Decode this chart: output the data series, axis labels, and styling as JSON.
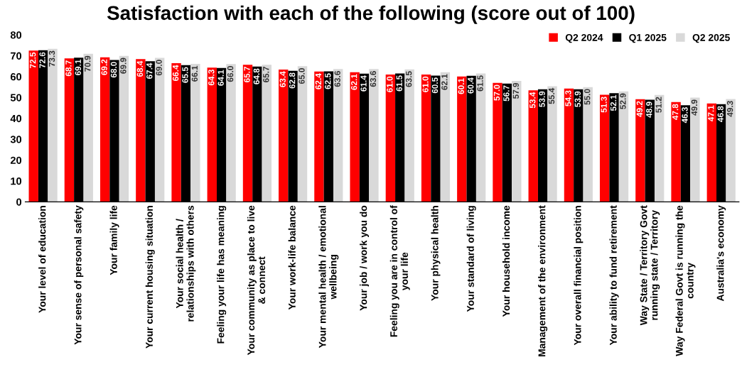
{
  "chart_data": {
    "type": "bar",
    "title": "Satisfaction with each of the following (score out of 100)",
    "categories": [
      "Your level of education",
      "Your sense of personal safety",
      "Your family life",
      "Your current housing situation",
      "Your social health / relationships with others",
      "Feeling your life has meaning",
      "Your community as place to live & connect",
      "Your work-life balance",
      "Your mental health / emotional wellbeing",
      "Your job / work you do",
      "Feeling you are in control of your life",
      "Your physical health",
      "Your standard of living",
      "Your household income",
      "Management of the environment",
      "Your overall financial position",
      "Your ability to fund retirement",
      "Way State / Territory Govt running state / Territory",
      "Way Federal Govt is running the country",
      "Australia's economy"
    ],
    "series": [
      {
        "name": "Q2 2024",
        "color": "#ff0000",
        "values": [
          72.5,
          68.7,
          69.2,
          68.4,
          66.4,
          64.3,
          65.7,
          63.4,
          62.4,
          62.1,
          61.0,
          61.0,
          60.1,
          57.0,
          53.4,
          54.3,
          51.3,
          49.2,
          47.8,
          47.1
        ],
        "value_labels": [
          "72.5",
          "68.7",
          "69.2",
          "68.4",
          "66.4",
          "64.3",
          "65.7",
          "63.4",
          "62.4",
          "62.1",
          "61.0",
          "61.0",
          "60.1",
          "57.0",
          "53.4",
          "54.3",
          "51.3",
          "49.2",
          "47.8",
          "47.1"
        ]
      },
      {
        "name": "Q1 2025",
        "color": "#000000",
        "values": [
          72.6,
          69.1,
          68.0,
          67.4,
          65.5,
          64.1,
          64.8,
          62.8,
          62.5,
          61.4,
          61.5,
          60.5,
          60.4,
          56.7,
          53.9,
          53.9,
          52.1,
          48.9,
          46.3,
          46.8
        ],
        "value_labels": [
          "72.6",
          "69.1",
          "68.0",
          "67.4",
          "65.5",
          "64.1",
          "64.8",
          "62.8",
          "62.5",
          "61.4",
          "61.5",
          "60.5",
          "60.4",
          "56.7",
          "53.9",
          "53.9",
          "52.1",
          "48.9",
          "46.3",
          "46.8"
        ]
      },
      {
        "name": "Q2 2025",
        "color": "#d9d9d9",
        "values": [
          73.3,
          70.9,
          69.9,
          69.0,
          66.1,
          66.0,
          65.7,
          65.0,
          63.6,
          63.6,
          63.5,
          62.1,
          61.5,
          57.9,
          55.4,
          55.0,
          52.9,
          51.2,
          49.9,
          49.3
        ],
        "value_labels": [
          "73.3",
          "70.9",
          "69.9",
          "69.0",
          "66.1",
          "66.0",
          "65.7",
          "65.0",
          "63.6",
          "63.6",
          "63.5",
          "62.1",
          "61.5",
          "57.9",
          "55.4",
          "55.0",
          "52.9",
          "51.2",
          "49.9",
          "49.3"
        ]
      }
    ],
    "ylim": [
      0,
      80
    ],
    "yticks": [
      0,
      10,
      20,
      30,
      40,
      50,
      60,
      70,
      80
    ],
    "legend": "top right"
  }
}
